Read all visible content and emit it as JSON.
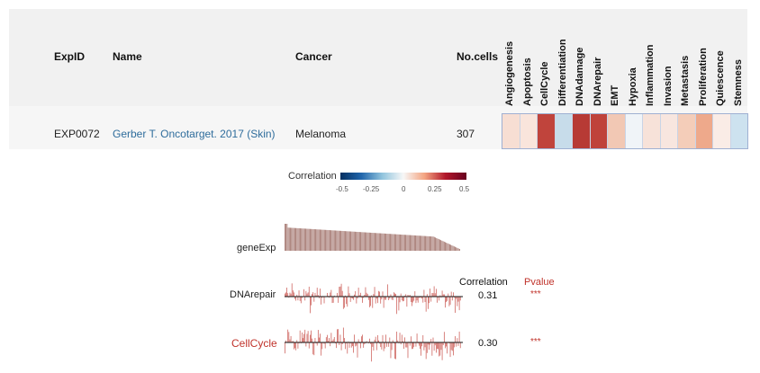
{
  "table": {
    "headers": {
      "expid": "ExpID",
      "name": "Name",
      "cancer": "Cancer",
      "ncells": "No.cells"
    },
    "states": [
      "Angiogenesis",
      "Apoptosis",
      "CellCycle",
      "Differentiation",
      "DNAdamage",
      "DNArepair",
      "EMT",
      "Hypoxia",
      "Inflammation",
      "Invasion",
      "Metastasis",
      "Proliferation",
      "Quiescence",
      "Stemness"
    ],
    "row": {
      "expid": "EXP0072",
      "name": "Gerber T. Oncotarget. 2017 (Skin)",
      "cancer": "Melanoma",
      "ncells": "307",
      "state_colors": [
        "#f7ded3",
        "#f9e5dc",
        "#c0443c",
        "#c7dcea",
        "#b73a35",
        "#bf433b",
        "#f2c8b4",
        "#f0f4f8",
        "#f7e2d9",
        "#f8e6df",
        "#f4cdb9",
        "#eea98b",
        "#faece6",
        "#cde2ef"
      ]
    }
  },
  "legend": {
    "title": "Correlation",
    "ticks": [
      "-0.5",
      "-0.25",
      "0",
      "0.25",
      "0.5"
    ]
  },
  "plots": {
    "geneexp_label": "geneExp",
    "correlation_header": "Correlation",
    "pvalue_header": "Pvalue",
    "rows": [
      {
        "label": "DNArepair",
        "correlation": "0.31",
        "pvalue": "***"
      },
      {
        "label": "CellCycle",
        "correlation": "0.30",
        "pvalue": "***"
      }
    ]
  },
  "colors": {
    "accent_red": "#c0332b",
    "bar_red": "#c8504a",
    "link_blue": "#2f6d9c"
  }
}
